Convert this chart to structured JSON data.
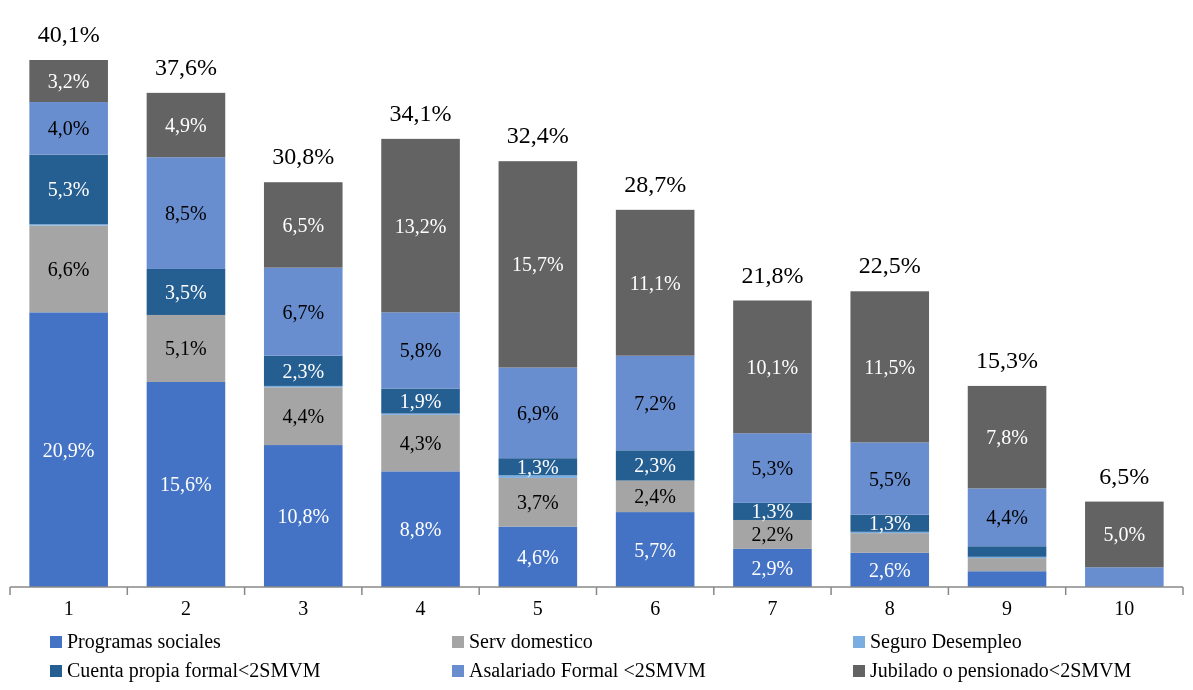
{
  "chart_data": {
    "type": "bar",
    "stacked": true,
    "categories": [
      "1",
      "2",
      "3",
      "4",
      "5",
      "6",
      "7",
      "8",
      "9",
      "10"
    ],
    "series": [
      {
        "name": "Programas sociales",
        "color": "#4472c4",
        "values": [
          20.9,
          15.6,
          10.8,
          8.8,
          4.6,
          5.7,
          2.9,
          2.6,
          1.2,
          0
        ],
        "value_labels": [
          "20,9%",
          "15,6%",
          "10,8%",
          "8,8%",
          "4,6%",
          "5,7%",
          "2,9%",
          "2,6%",
          null,
          null
        ]
      },
      {
        "name": "Serv domestico",
        "color": "#a5a5a5",
        "values": [
          6.6,
          5.1,
          4.4,
          4.3,
          3.7,
          2.4,
          2.2,
          1.5,
          1.0,
          0
        ],
        "value_labels": [
          "6,6%",
          "5,1%",
          "4,4%",
          "4,3%",
          "3,7%",
          "2,4%",
          "2,2%",
          null,
          null,
          null
        ]
      },
      {
        "name": "Seguro Desempleo",
        "color": "#7aaee0",
        "values": [
          0.1,
          0,
          0.1,
          0.1,
          0.2,
          0,
          0,
          0.1,
          0.1,
          0
        ],
        "value_labels": [
          null,
          null,
          null,
          null,
          null,
          null,
          null,
          null,
          null,
          null
        ]
      },
      {
        "name": "Cuenta propia formal<2SMVM",
        "color": "#255e91",
        "values": [
          5.3,
          3.5,
          2.3,
          1.9,
          1.3,
          2.3,
          1.3,
          1.3,
          0.8,
          0
        ],
        "value_labels": [
          "5,3%",
          "3,5%",
          "2,3%",
          "1,9%",
          "1,3%",
          "2,3%",
          "1,3%",
          "1,3%",
          null,
          null
        ]
      },
      {
        "name": "Asalariado Formal <2SMVM",
        "color": "#698ed0",
        "values": [
          4.0,
          8.5,
          6.7,
          5.8,
          6.9,
          7.2,
          5.3,
          5.5,
          4.4,
          1.5
        ],
        "value_labels": [
          "4,0%",
          "8,5%",
          "6,7%",
          "5,8%",
          "6,9%",
          "7,2%",
          "5,3%",
          "5,5%",
          "4,4%",
          null
        ]
      },
      {
        "name": "Jubilado o pensionado<2SMVM",
        "color": "#636363",
        "values": [
          3.2,
          4.9,
          6.5,
          13.2,
          15.7,
          11.1,
          10.1,
          11.5,
          7.8,
          5.0
        ],
        "value_labels": [
          "3,2%",
          "4,9%",
          "6,5%",
          "13,2%",
          "15,7%",
          "11,1%",
          "10,1%",
          "11,5%",
          "7,8%",
          "5,0%"
        ]
      }
    ],
    "totals": [
      "40,1%",
      "37,6%",
      "30,8%",
      "34,1%",
      "32,4%",
      "28,7%",
      "21,8%",
      "22,5%",
      "15,3%",
      "6,5%"
    ],
    "legend": "bottom",
    "tick_labels": "x"
  }
}
